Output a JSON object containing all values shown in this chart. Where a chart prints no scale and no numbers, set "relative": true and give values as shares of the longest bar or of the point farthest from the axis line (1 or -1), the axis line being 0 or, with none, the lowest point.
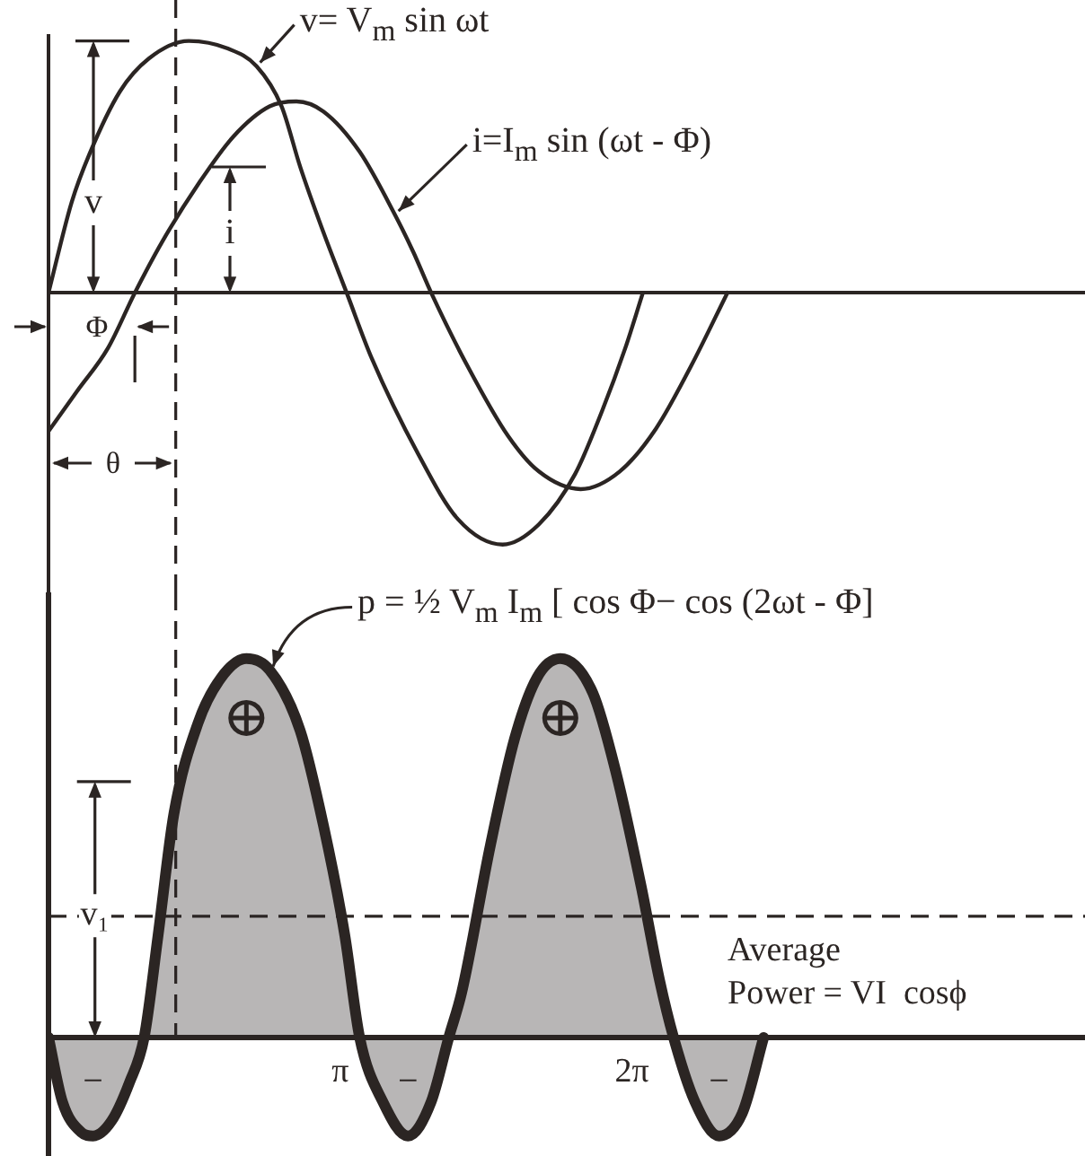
{
  "chart_data": [
    {
      "type": "line",
      "relative": true,
      "xlim": [
        0,
        11.16
      ],
      "tick_labels": false,
      "legend": "top",
      "series": [
        {
          "name": "v= V$_{m}$ sin ωt",
          "color": "#2b2523",
          "x": [
            0,
            0.25,
            0.44,
            0.77,
            1.08,
            1.51,
            1.93,
            2.24,
            2.51,
            2.71,
            2.96,
            3.21,
            3.48,
            3.98,
            4.41,
            4.89,
            5.28,
            5.67,
            5.96,
            6.21,
            6.4
          ],
          "values": [
            0,
            0.36,
            0.55,
            0.8,
            0.93,
            1.0,
            0.97,
            0.9,
            0.74,
            0.5,
            0.24,
            0,
            -0.26,
            -0.64,
            -0.9,
            -1.0,
            -0.92,
            -0.72,
            -0.47,
            -0.22,
            0
          ]
        },
        {
          "name": "i=I$_{m}$ sin (ωt - Φ)",
          "color": "#2b2523",
          "x": [
            0,
            0.31,
            0.64,
            0.93,
            1.22,
            1.61,
            1.99,
            2.38,
            2.67,
            2.96,
            3.35,
            3.73,
            3.93,
            4.12,
            4.51,
            4.95,
            5.28,
            5.73,
            6.15,
            6.54,
            6.92,
            7.31
          ],
          "values": [
            -0.55,
            -0.39,
            -0.22,
            0,
            0.2,
            0.43,
            0.62,
            0.74,
            0.76,
            0.72,
            0.56,
            0.31,
            0.16,
            0,
            -0.29,
            -0.57,
            -0.71,
            -0.78,
            -0.71,
            -0.54,
            -0.29,
            0
          ]
        }
      ],
      "ref_lines": [
        {
          "axis": "x",
          "value": 1.37,
          "color": "#2b2523",
          "line_style": "dashed"
        }
      ],
      "annotations": [
        "v",
        "i",
        "Φ",
        "θ"
      ]
    },
    {
      "type": "area",
      "relative": true,
      "xlim": [
        0,
        11.16
      ],
      "xticks": [
        {
          "value": 3.1416,
          "label": "π"
        },
        {
          "value": 6.2832,
          "label": "2π"
        }
      ],
      "series": [
        {
          "name": "p = ½ V$_{m}$ I$_{m}$ [ cos Φ− cos (2ωt - Φ]",
          "color": "#2b2523",
          "x": [
            0,
            0.15,
            0.35,
            0.48,
            0.68,
            0.87,
            1.03,
            1.18,
            1.35,
            1.61,
            1.86,
            2.13,
            2.38,
            2.71,
            2.96,
            3.19,
            3.35,
            3.6,
            3.87,
            4.12,
            4.31,
            4.45,
            4.76,
            5.02,
            5.26,
            5.51,
            5.86,
            6.11,
            6.38,
            6.58,
            6.73,
            6.96,
            7.22,
            7.47,
            7.7
          ],
          "values": [
            0,
            -0.17,
            -0.25,
            -0.26,
            -0.22,
            -0.12,
            0,
            0.27,
            0.59,
            0.83,
            0.95,
            1.0,
            0.97,
            0.81,
            0.56,
            0.27,
            0,
            -0.17,
            -0.26,
            -0.17,
            0,
            0.12,
            0.51,
            0.79,
            0.95,
            1.0,
            0.91,
            0.7,
            0.4,
            0.15,
            0,
            -0.17,
            -0.26,
            -0.2,
            0
          ]
        }
      ],
      "ref_lines": [
        {
          "axis": "x",
          "value": 1.37,
          "color": "#2b2523",
          "line_style": "dashed"
        },
        {
          "axis": "y",
          "value": 0.32,
          "label": "Average\nPower = VI  cosϕ",
          "color": "#2b2523",
          "line_style": "dashed"
        }
      ],
      "annotations": [
        "⊕",
        "⊕",
        "−",
        "−",
        "−",
        {
          "text": "v₁",
          "x": 0.5,
          "y": 0.32
        }
      ]
    }
  ]
}
